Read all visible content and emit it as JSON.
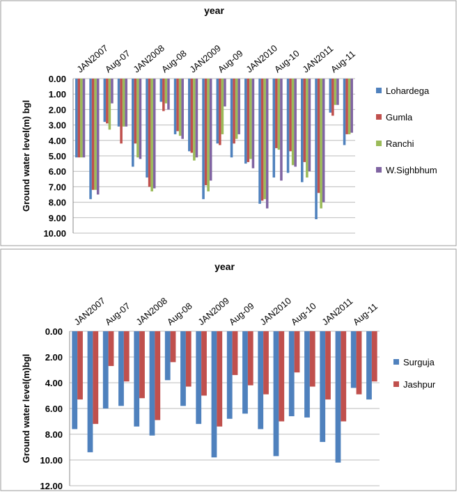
{
  "chart_data": [
    {
      "type": "bar",
      "title": "year",
      "y_label": "Ground water level(m) bgl",
      "y_inverted": true,
      "grid": true,
      "legend": "right",
      "categories": [
        "JAN2007",
        null,
        "Aug-07",
        null,
        "JAN2008",
        null,
        "Aug-08",
        null,
        "JAN2009",
        null,
        "Aug-09",
        null,
        "JAN2010",
        null,
        "Aug-10",
        null,
        "JAN2011",
        null,
        "Aug-11",
        null
      ],
      "ylim": [
        0,
        10
      ],
      "yticks": [
        {
          "value": 0,
          "label": "0.00"
        },
        {
          "value": 1,
          "label": "1.00"
        },
        {
          "value": 2,
          "label": "2.00"
        },
        {
          "value": 3,
          "label": "3.00"
        },
        {
          "value": 4,
          "label": "4.00"
        },
        {
          "value": 5,
          "label": "5.00"
        },
        {
          "value": 6,
          "label": "6.00"
        },
        {
          "value": 7,
          "label": "7.00"
        },
        {
          "value": 8,
          "label": "8.00"
        },
        {
          "value": 9,
          "label": "9.00"
        },
        {
          "value": 10,
          "label": "10.00"
        }
      ],
      "series": [
        {
          "name": "Lohardega",
          "color": "#4f81bd",
          "values": [
            5.1,
            7.8,
            2.8,
            3.1,
            5.7,
            6.4,
            1.5,
            3.6,
            4.7,
            7.8,
            4.2,
            5.1,
            5.5,
            8.1,
            6.4,
            6.1,
            6.7,
            9.1,
            2.2,
            4.3
          ]
        },
        {
          "name": "Gumla",
          "color": "#c0504d",
          "values": [
            5.1,
            7.2,
            2.9,
            4.2,
            4.2,
            7.0,
            2.1,
            3.4,
            4.8,
            6.9,
            4.3,
            4.2,
            5.4,
            7.9,
            4.5,
            4.7,
            5.4,
            7.4,
            2.4,
            3.6
          ]
        },
        {
          "name": "Ranchi",
          "color": "#9bbb59",
          "values": [
            5.1,
            7.2,
            3.3,
            3.1,
            5.1,
            7.3,
            1.6,
            3.7,
            5.3,
            7.3,
            3.6,
            3.9,
            5.2,
            7.8,
            4.6,
            5.6,
            6.4,
            8.4,
            1.7,
            3.6
          ]
        },
        {
          "name": "W.Sighbhum",
          "color": "#8064a2",
          "values": [
            5.1,
            7.5,
            1.6,
            3.1,
            5.2,
            7.1,
            2.0,
            3.9,
            5.1,
            6.6,
            1.8,
            3.6,
            5.8,
            8.4,
            6.6,
            5.7,
            6.0,
            8.0,
            1.7,
            3.5
          ]
        }
      ]
    },
    {
      "type": "bar",
      "title": "year",
      "y_label": "Ground water level(m)bgl",
      "y_inverted": true,
      "grid": true,
      "legend": "right",
      "categories": [
        "JAN2007",
        null,
        "Aug-07",
        null,
        "JAN2008",
        null,
        "Aug-08",
        null,
        "JAN2009",
        null,
        "Aug-09",
        null,
        "JAN2010",
        null,
        "Aug-10",
        null,
        "JAN2011",
        null,
        "Aug-11",
        null
      ],
      "ylim": [
        0,
        12
      ],
      "yticks": [
        {
          "value": 0,
          "label": "0.00"
        },
        {
          "value": 2,
          "label": "2.00"
        },
        {
          "value": 4,
          "label": "4.00"
        },
        {
          "value": 6,
          "label": "6.00"
        },
        {
          "value": 8,
          "label": "8.00"
        },
        {
          "value": 10,
          "label": "10.00"
        },
        {
          "value": 12,
          "label": "12.00"
        }
      ],
      "series": [
        {
          "name": "Surguja",
          "color": "#4f81bd",
          "values": [
            7.6,
            9.4,
            6.0,
            5.8,
            7.4,
            8.1,
            3.8,
            5.8,
            7.2,
            9.8,
            6.8,
            6.4,
            7.6,
            9.7,
            6.6,
            6.7,
            8.6,
            10.2,
            4.4,
            5.3
          ]
        },
        {
          "name": "Jashpur",
          "color": "#c0504d",
          "values": [
            5.3,
            7.2,
            2.7,
            3.9,
            5.2,
            6.9,
            2.4,
            4.3,
            5.0,
            7.4,
            3.4,
            4.2,
            4.9,
            7.0,
            3.2,
            4.3,
            5.3,
            7.0,
            4.9,
            3.9
          ]
        }
      ]
    }
  ]
}
